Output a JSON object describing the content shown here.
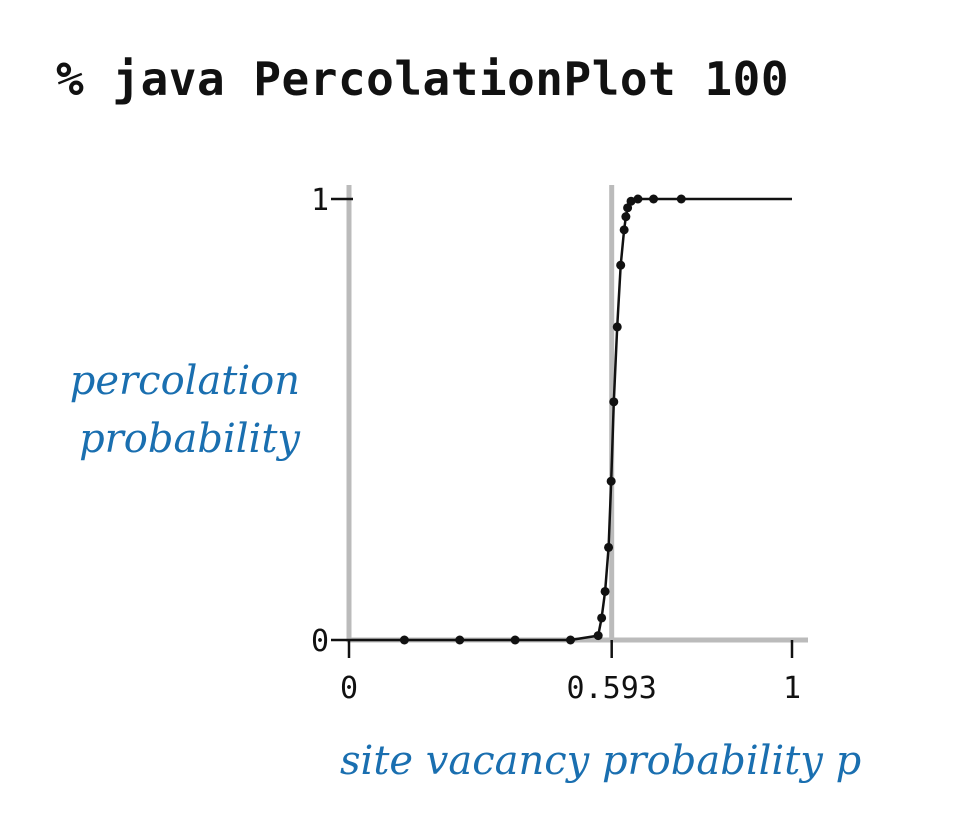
{
  "command": "% java PercolationPlot 100",
  "chart_data": {
    "type": "line",
    "xlabel": "site vacancy probability p",
    "ylabel_lines": [
      "percolation",
      "probability"
    ],
    "xlim": [
      0,
      1
    ],
    "ylim": [
      0,
      1
    ],
    "x_ticks": [
      {
        "value": 0,
        "label": "0"
      },
      {
        "value": 0.593,
        "label": "0.593"
      },
      {
        "value": 1,
        "label": "1"
      }
    ],
    "y_ticks": [
      {
        "value": 0,
        "label": "0"
      },
      {
        "value": 1,
        "label": "1"
      }
    ],
    "threshold_line": 0.593,
    "series": [
      {
        "x": [
          0,
          0.125,
          0.25,
          0.375,
          0.5,
          0.5625,
          0.5703,
          0.5781,
          0.5859,
          0.5918,
          0.5977,
          0.6055,
          0.6133,
          0.6211,
          0.625,
          0.6289,
          0.6367,
          0.6523,
          0.6875,
          0.75,
          1
        ],
        "y": [
          0,
          0,
          0,
          0,
          0,
          0.01,
          0.05,
          0.11,
          0.21,
          0.36,
          0.54,
          0.71,
          0.85,
          0.93,
          0.96,
          0.98,
          0.995,
          1,
          1,
          1,
          1
        ]
      }
    ]
  },
  "colors": {
    "axis": "#bbbbbb",
    "curve": "#111111",
    "label": "#1a6fb0"
  }
}
